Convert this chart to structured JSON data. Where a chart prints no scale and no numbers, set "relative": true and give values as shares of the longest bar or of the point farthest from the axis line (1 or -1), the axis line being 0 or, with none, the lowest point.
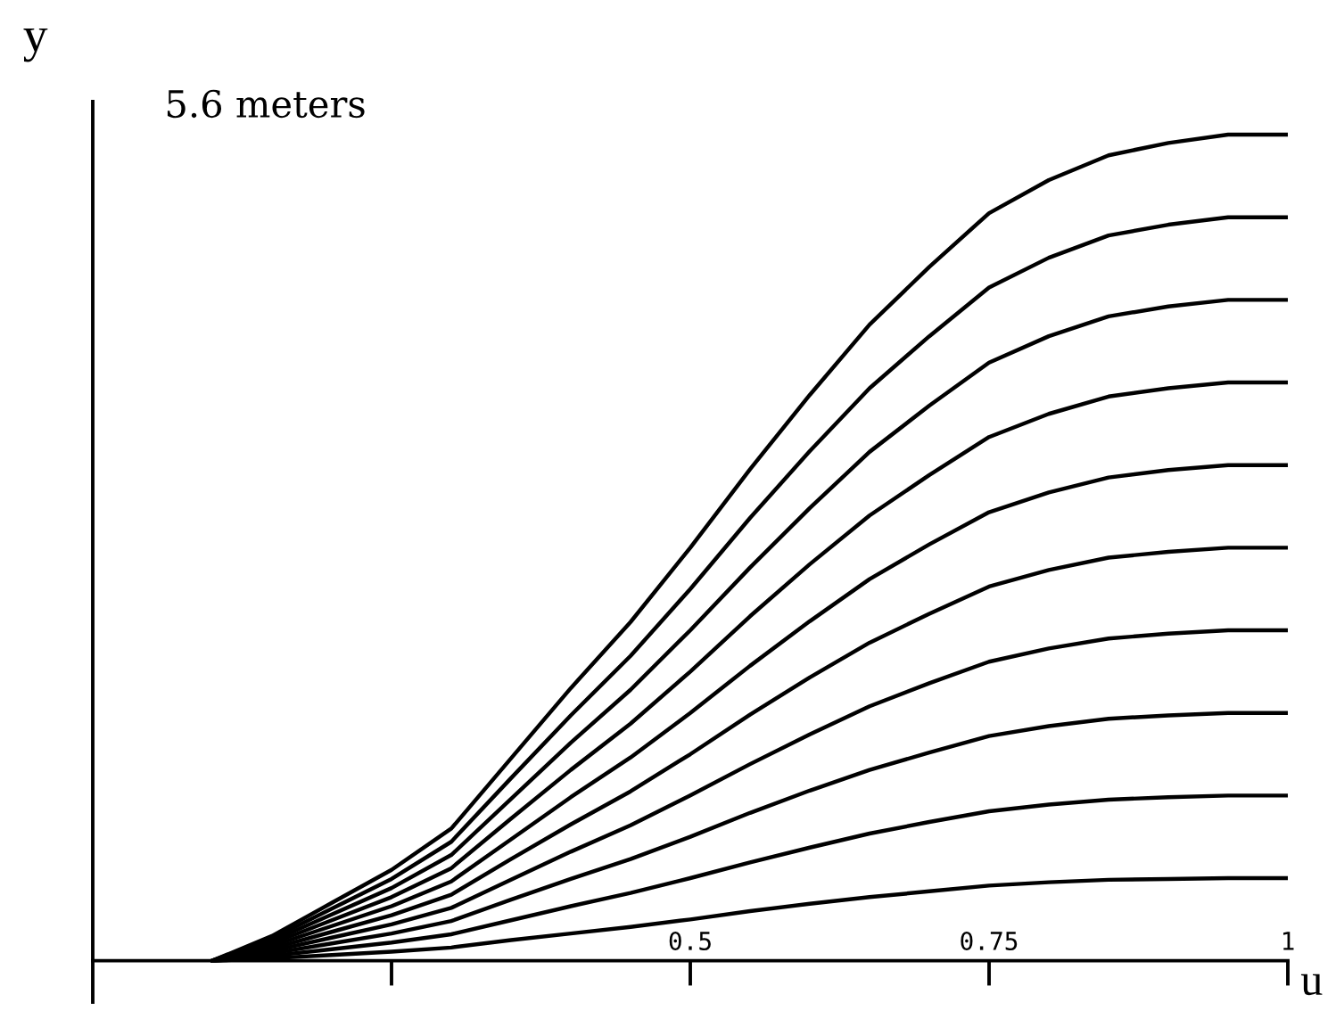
{
  "chart_data": {
    "type": "line",
    "relative": true,
    "xlabel": "u",
    "ylabel": "y",
    "annotations": [
      "5.6 meters"
    ],
    "x": [
      0.1,
      0.15,
      0.2,
      0.25,
      0.3,
      0.35,
      0.4,
      0.45,
      0.5,
      0.55,
      0.6,
      0.65,
      0.7,
      0.75,
      0.8,
      0.85,
      0.9,
      0.95,
      1.0
    ],
    "xlim": [
      0,
      1
    ],
    "xticks": [
      {
        "value": 0.25,
        "label": null
      },
      0.5,
      0.75,
      1
    ],
    "series": [
      {
        "color": "#000000",
        "values": [
          0,
          0.003,
          0.007,
          0.011,
          0.016,
          0.025,
          0.033,
          0.041,
          0.05,
          0.06,
          0.069,
          0.077,
          0.084,
          0.091,
          0.095,
          0.098,
          0.099,
          0.1,
          0.1
        ]
      },
      {
        "color": "#000000",
        "values": [
          0,
          0.006,
          0.014,
          0.022,
          0.032,
          0.049,
          0.066,
          0.082,
          0.1,
          0.119,
          0.137,
          0.154,
          0.168,
          0.181,
          0.189,
          0.195,
          0.198,
          0.2,
          0.2
        ]
      },
      {
        "color": "#000000",
        "values": [
          0,
          0.009,
          0.021,
          0.033,
          0.048,
          0.074,
          0.099,
          0.123,
          0.15,
          0.179,
          0.206,
          0.231,
          0.252,
          0.272,
          0.284,
          0.293,
          0.297,
          0.3,
          0.3
        ]
      },
      {
        "color": "#000000",
        "values": [
          0,
          0.012,
          0.028,
          0.044,
          0.064,
          0.098,
          0.132,
          0.164,
          0.2,
          0.238,
          0.274,
          0.308,
          0.336,
          0.362,
          0.378,
          0.39,
          0.396,
          0.4,
          0.4
        ]
      },
      {
        "color": "#000000",
        "values": [
          0,
          0.015,
          0.035,
          0.055,
          0.08,
          0.123,
          0.165,
          0.205,
          0.25,
          0.298,
          0.343,
          0.385,
          0.42,
          0.453,
          0.473,
          0.488,
          0.495,
          0.5,
          0.5
        ]
      },
      {
        "color": "#000000",
        "values": [
          0,
          0.018,
          0.042,
          0.066,
          0.096,
          0.147,
          0.198,
          0.246,
          0.3,
          0.357,
          0.411,
          0.462,
          0.504,
          0.543,
          0.567,
          0.585,
          0.594,
          0.6,
          0.6
        ]
      },
      {
        "color": "#000000",
        "values": [
          0,
          0.021,
          0.049,
          0.077,
          0.112,
          0.172,
          0.231,
          0.287,
          0.35,
          0.417,
          0.48,
          0.539,
          0.588,
          0.634,
          0.662,
          0.683,
          0.693,
          0.7,
          0.7
        ]
      },
      {
        "color": "#000000",
        "values": [
          0,
          0.024,
          0.056,
          0.088,
          0.128,
          0.196,
          0.264,
          0.328,
          0.4,
          0.476,
          0.548,
          0.616,
          0.672,
          0.724,
          0.756,
          0.78,
          0.792,
          0.8,
          0.8
        ]
      },
      {
        "color": "#000000",
        "values": [
          0,
          0.027,
          0.063,
          0.099,
          0.144,
          0.221,
          0.297,
          0.369,
          0.45,
          0.536,
          0.617,
          0.693,
          0.756,
          0.815,
          0.851,
          0.878,
          0.891,
          0.9,
          0.9
        ]
      },
      {
        "color": "#000000",
        "values": [
          0,
          0.03,
          0.07,
          0.11,
          0.16,
          0.245,
          0.33,
          0.41,
          0.5,
          0.595,
          0.685,
          0.77,
          0.84,
          0.905,
          0.945,
          0.975,
          0.99,
          1,
          1
        ]
      }
    ]
  }
}
